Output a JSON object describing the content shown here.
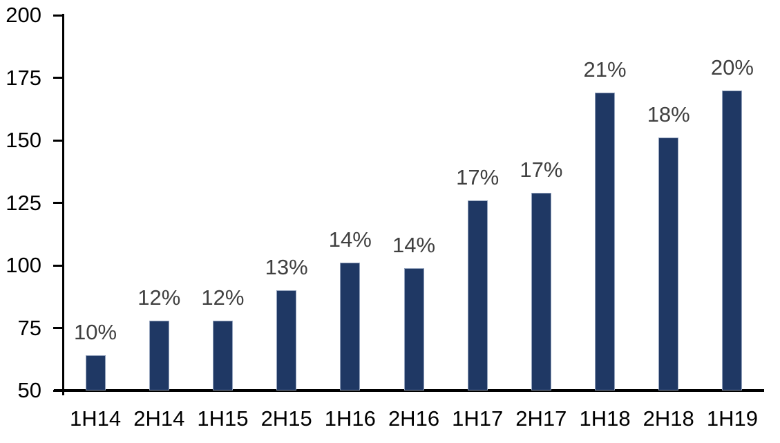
{
  "chart_data": {
    "type": "bar",
    "title": "",
    "xlabel": "",
    "ylabel": "",
    "categories": [
      "1H14",
      "2H14",
      "1H15",
      "2H15",
      "1H16",
      "2H16",
      "1H17",
      "2H17",
      "1H18",
      "2H18",
      "1H19"
    ],
    "values": [
      64,
      78,
      78,
      90,
      101,
      99,
      126,
      129,
      169,
      151,
      170
    ],
    "bar_labels": [
      "10%",
      "12%",
      "12%",
      "13%",
      "14%",
      "14%",
      "17%",
      "17%",
      "21%",
      "18%",
      "20%"
    ],
    "ylim": [
      50,
      200
    ],
    "ytick_step": 25,
    "yticks": [
      50,
      75,
      100,
      125,
      150,
      175,
      200
    ],
    "grid": false,
    "legend": false,
    "bar_color": "#1f3864",
    "bar_border_color": "#94a3bd",
    "data_label_color": "#404040",
    "axis_color": "#000000"
  }
}
